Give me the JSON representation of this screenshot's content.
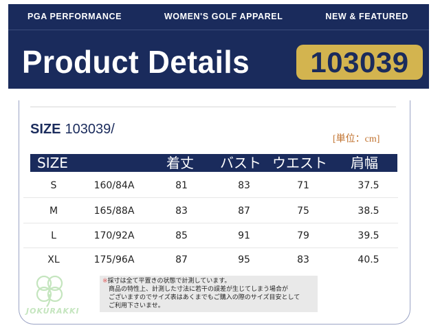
{
  "banner": {
    "nav": [
      "PGA PERFORMANCE",
      "WOMEN'S GOLF APPAREL",
      "NEW & FEATURED"
    ],
    "title": "Product Details",
    "code": "103039"
  },
  "size_chart": {
    "heading_label": "SIZE",
    "heading_code": "103039/",
    "unit": "[単位：cm]",
    "columns": [
      "SIZE",
      "",
      "着丈",
      "バスト",
      "ウエスト",
      "肩幅"
    ],
    "rows": [
      [
        "S",
        "160/84A",
        "81",
        "83",
        "71",
        "37.5"
      ],
      [
        "M",
        "165/88A",
        "83",
        "87",
        "75",
        "38.5"
      ],
      [
        "L",
        "170/92A",
        "85",
        "91",
        "79",
        "39.5"
      ],
      [
        "XL",
        "175/96A",
        "87",
        "95",
        "83",
        "40.5"
      ]
    ]
  },
  "note": {
    "mark": "※",
    "lines": [
      "採寸は全て平置きの状態で計測しています。",
      "商品の特性上、計測した寸法に若干の誤差が生じてしまう場合が",
      "ございますのでサイズ表はあくまでもご購入の際のサイズ目安として",
      "ご利用下さいませ。"
    ]
  },
  "watermark": {
    "text": "JOKURAKKI",
    "icon": "clover-icon",
    "color": "#95d18a"
  },
  "colors": {
    "navy": "#1a2b5c",
    "gold": "#d3b44f",
    "unit_orange": "#c0712d"
  }
}
